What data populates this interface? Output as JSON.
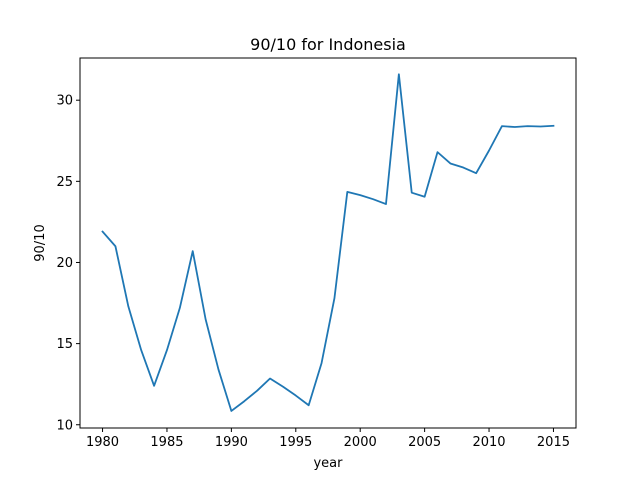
{
  "chart_data": {
    "type": "line",
    "title": "90/10 for Indonesia",
    "xlabel": "year",
    "ylabel": "90/10",
    "xlim": [
      1978.25,
      2016.75
    ],
    "ylim": [
      9.8,
      32.6
    ],
    "xticks": [
      1980,
      1985,
      1990,
      1995,
      2000,
      2005,
      2010,
      2015
    ],
    "yticks": [
      10,
      15,
      20,
      25,
      30
    ],
    "grid": false,
    "series": [
      {
        "color": "#1f77b4",
        "x": [
          1980,
          1981,
          1982,
          1983,
          1984,
          1985,
          1986,
          1987,
          1988,
          1989,
          1990,
          1991,
          1992,
          1993,
          1994,
          1995,
          1996,
          1997,
          1998,
          1999,
          2000,
          2001,
          2002,
          2003,
          2004,
          2005,
          2006,
          2007,
          2008,
          2009,
          2010,
          2011,
          2012,
          2013,
          2014,
          2015
        ],
        "y": [
          21.9,
          21.0,
          17.3,
          14.6,
          12.4,
          14.6,
          17.2,
          20.7,
          16.5,
          13.4,
          10.85,
          11.45,
          12.1,
          12.85,
          12.35,
          11.8,
          11.2,
          13.8,
          17.8,
          24.35,
          24.15,
          23.9,
          23.6,
          31.6,
          24.3,
          24.05,
          26.8,
          26.1,
          25.85,
          25.5,
          26.9,
          28.4,
          28.35,
          28.4,
          28.38,
          28.42
        ]
      }
    ]
  }
}
